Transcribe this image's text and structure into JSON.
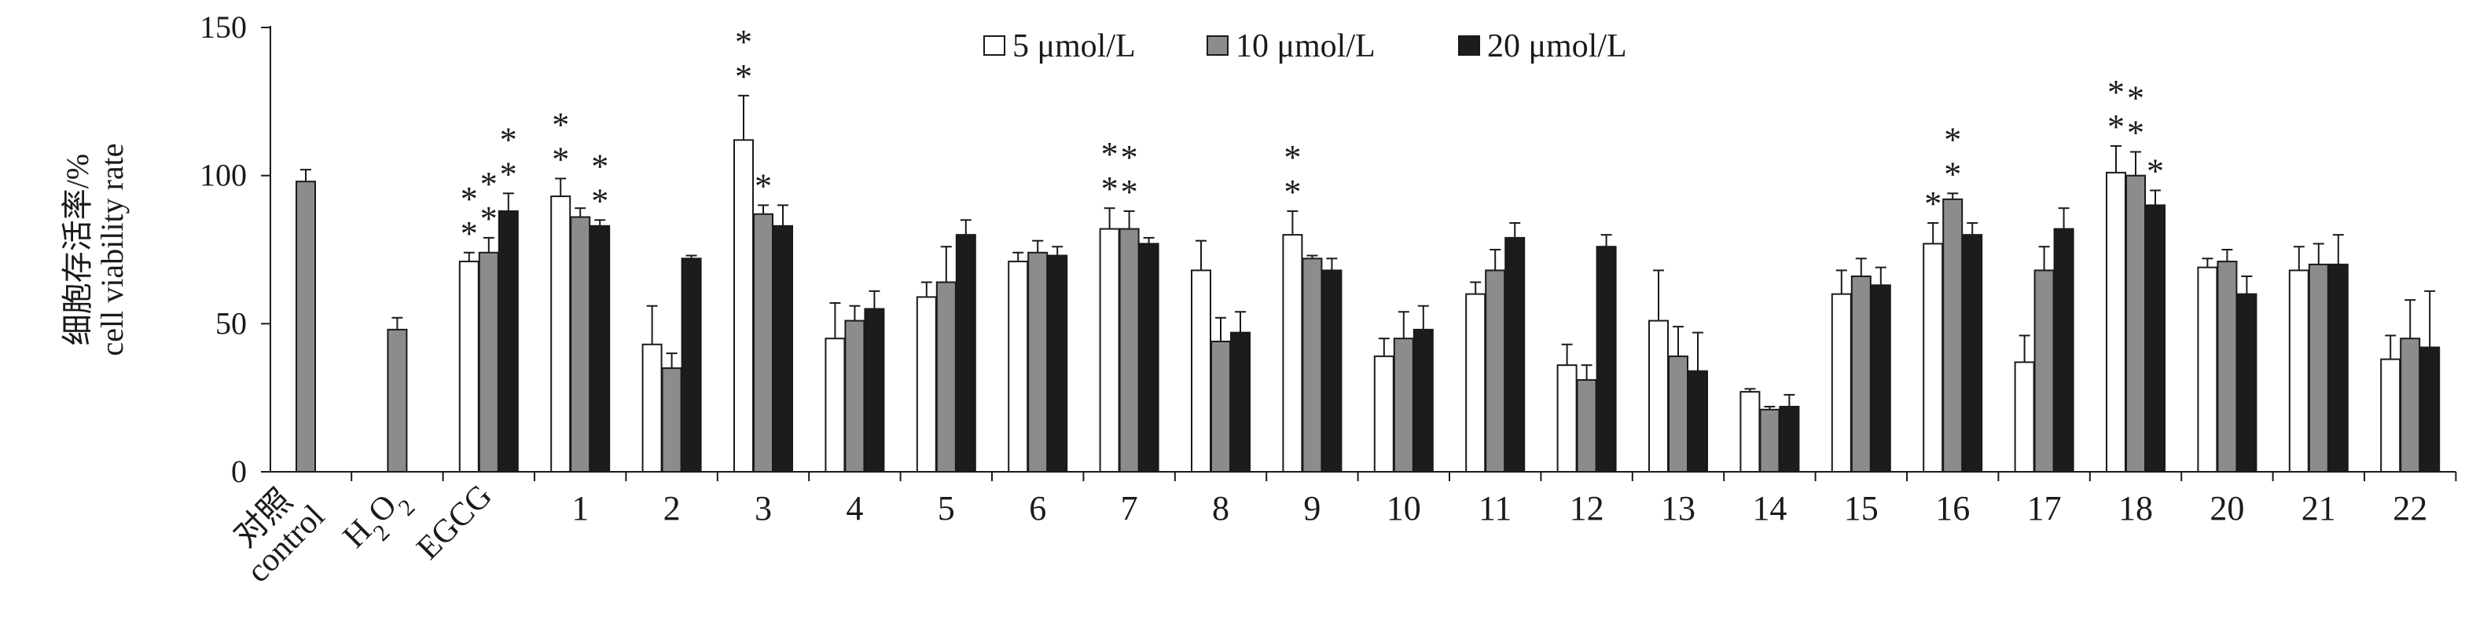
{
  "chart_data": {
    "type": "bar",
    "categories": [
      {
        "label": "对照",
        "label2": "control"
      },
      {
        "label": "H2O2",
        "main": "H",
        "sub1": "2",
        "main2": "O",
        "sub2": "2"
      },
      {
        "label": "EGCG"
      },
      {
        "label": "1"
      },
      {
        "label": "2"
      },
      {
        "label": "3"
      },
      {
        "label": "4"
      },
      {
        "label": "5"
      },
      {
        "label": "6"
      },
      {
        "label": "7"
      },
      {
        "label": "8"
      },
      {
        "label": "9"
      },
      {
        "label": "10"
      },
      {
        "label": "11"
      },
      {
        "label": "12"
      },
      {
        "label": "13"
      },
      {
        "label": "14"
      },
      {
        "label": "15"
      },
      {
        "label": "16"
      },
      {
        "label": "17"
      },
      {
        "label": "18"
      },
      {
        "label": "20"
      },
      {
        "label": "21"
      },
      {
        "label": "22"
      }
    ],
    "ylabel_line1": "细胞存活率/%",
    "ylabel_line2": "cell viability rate",
    "ylim": [
      0,
      150
    ],
    "yticks": [
      0,
      50,
      100,
      150
    ],
    "legend_position": "top-center",
    "grid": false,
    "series": [
      {
        "name": "5 μmol/L",
        "color": "#ffffff",
        "values": [
          null,
          null,
          71,
          93,
          43,
          112,
          45,
          59,
          71,
          82,
          68,
          80,
          39,
          60,
          36,
          51,
          27,
          60,
          77,
          37,
          101,
          69,
          68,
          38
        ],
        "errors": [
          null,
          null,
          3,
          6,
          13,
          15,
          12,
          5,
          3,
          7,
          10,
          8,
          6,
          4,
          7,
          17,
          1,
          8,
          7,
          9,
          9,
          3,
          8,
          8
        ],
        "marks": [
          "",
          "",
          "**",
          "**",
          "",
          "**",
          "",
          "",
          "",
          "**",
          "",
          "**",
          "",
          "",
          "",
          "",
          "",
          "",
          "*",
          "",
          "**",
          "",
          "",
          ""
        ]
      },
      {
        "name": "10 μmol/L",
        "color": "#8c8c8c",
        "values": [
          98,
          48,
          74,
          86,
          35,
          87,
          51,
          64,
          74,
          82,
          44,
          72,
          45,
          68,
          31,
          39,
          21,
          66,
          92,
          68,
          100,
          71,
          70,
          45
        ],
        "errors": [
          4,
          4,
          5,
          3,
          5,
          3,
          5,
          12,
          4,
          6,
          8,
          1,
          9,
          7,
          5,
          10,
          1,
          6,
          2,
          8,
          8,
          4,
          7,
          13
        ],
        "marks": [
          "",
          "",
          "**",
          "",
          "",
          "*",
          "",
          "",
          "",
          "**",
          "",
          "",
          "",
          "",
          "",
          "",
          "",
          "",
          "**",
          "",
          "**",
          "",
          "",
          ""
        ]
      },
      {
        "name": "20 μmol/L",
        "color": "#1c1c1c",
        "values": [
          null,
          null,
          88,
          83,
          72,
          83,
          55,
          80,
          73,
          77,
          47,
          68,
          48,
          79,
          76,
          34,
          22,
          63,
          80,
          82,
          90,
          60,
          70,
          42
        ],
        "errors": [
          null,
          null,
          6,
          2,
          1,
          7,
          6,
          5,
          3,
          2,
          7,
          4,
          8,
          5,
          4,
          13,
          4,
          6,
          4,
          7,
          5,
          6,
          10,
          19
        ],
        "marks": [
          "",
          "",
          "**",
          "**",
          "",
          "",
          "",
          "",
          "",
          "",
          "",
          "",
          "",
          "",
          "",
          "",
          "",
          "",
          "",
          "",
          "*",
          "",
          "",
          ""
        ]
      }
    ]
  }
}
